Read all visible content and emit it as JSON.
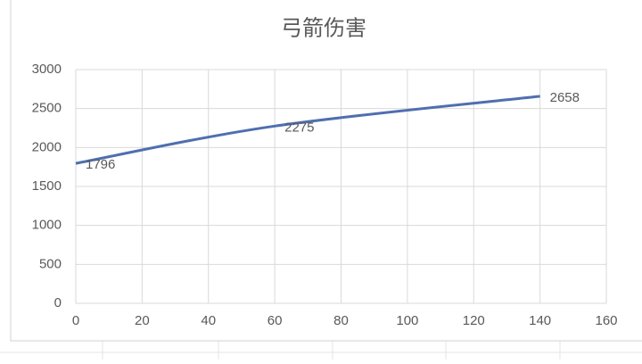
{
  "chart_data": {
    "type": "line",
    "title": "弓箭伤害",
    "x": [
      0,
      60,
      140
    ],
    "series": [
      {
        "name": "弓箭伤害",
        "color": "#4f6faf",
        "values": [
          1796,
          2275,
          2658
        ]
      }
    ],
    "xlim": [
      0,
      160
    ],
    "xticks": [
      0,
      20,
      40,
      60,
      80,
      100,
      120,
      140,
      160
    ],
    "ylim": [
      0,
      3000
    ],
    "yticks": [
      0,
      500,
      1000,
      1500,
      2000,
      2500,
      3000
    ],
    "grid": true,
    "data_labels": true
  }
}
